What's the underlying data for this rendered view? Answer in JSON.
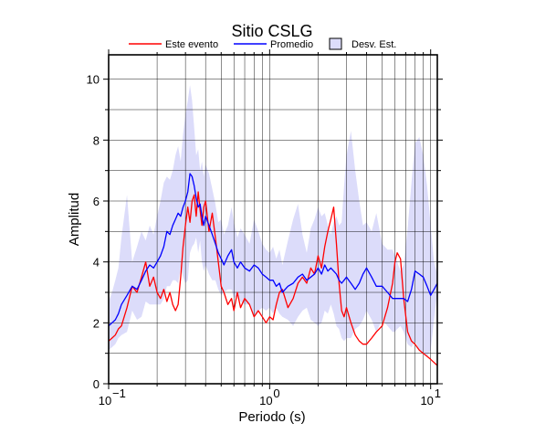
{
  "chart_data": {
    "type": "line",
    "title": "Sitio CSLG",
    "xlabel": "Periodo (s)",
    "ylabel": "Amplitud",
    "xscale": "log",
    "xlim": [
      0.1,
      11
    ],
    "ylim": [
      0,
      10.8
    ],
    "yticks": [
      "0",
      "2",
      "4",
      "6",
      "8",
      "10"
    ],
    "xticks": [
      {
        "base": "10",
        "exp": "−1"
      },
      {
        "base": "10",
        "exp": "0"
      },
      {
        "base": "10",
        "exp": "1"
      }
    ],
    "grid": true,
    "legend_position": "top",
    "legend": [
      {
        "label": "Este evento",
        "kind": "line",
        "color": "#ff0000"
      },
      {
        "label": "Promedio",
        "kind": "line",
        "color": "#0000ff"
      },
      {
        "label": "Desv. Est.",
        "kind": "patch",
        "color": "#dcdcfa"
      }
    ],
    "series": [
      {
        "name": "Este evento",
        "color": "#ff0000",
        "x": [
          0.1,
          0.105,
          0.11,
          0.115,
          0.12,
          0.13,
          0.14,
          0.15,
          0.16,
          0.17,
          0.18,
          0.19,
          0.2,
          0.21,
          0.22,
          0.23,
          0.24,
          0.25,
          0.26,
          0.27,
          0.28,
          0.29,
          0.3,
          0.31,
          0.32,
          0.33,
          0.34,
          0.35,
          0.36,
          0.37,
          0.38,
          0.39,
          0.4,
          0.42,
          0.44,
          0.46,
          0.48,
          0.5,
          0.52,
          0.55,
          0.58,
          0.6,
          0.63,
          0.66,
          0.7,
          0.75,
          0.8,
          0.85,
          0.9,
          0.95,
          1.0,
          1.05,
          1.1,
          1.15,
          1.2,
          1.3,
          1.4,
          1.5,
          1.6,
          1.7,
          1.8,
          1.9,
          2.0,
          2.1,
          2.2,
          2.3,
          2.4,
          2.5,
          2.6,
          2.7,
          2.8,
          2.9,
          3.0,
          3.2,
          3.4,
          3.6,
          3.8,
          4.0,
          4.3,
          4.6,
          5.0,
          5.4,
          5.8,
          6.0,
          6.2,
          6.5,
          6.8,
          7.2,
          7.6,
          8.0,
          8.5,
          9.0,
          9.5,
          10.0,
          10.5,
          11.0
        ],
        "y": [
          1.4,
          1.5,
          1.6,
          1.8,
          1.9,
          2.5,
          3.2,
          3.0,
          3.5,
          4.0,
          3.2,
          3.5,
          3.0,
          2.8,
          3.1,
          2.7,
          3.0,
          2.6,
          2.4,
          2.6,
          3.5,
          4.5,
          5.2,
          5.8,
          5.3,
          6.0,
          6.2,
          5.5,
          6.3,
          5.7,
          5.2,
          5.8,
          6.0,
          5.0,
          5.6,
          4.8,
          4.0,
          3.2,
          3.0,
          2.6,
          2.8,
          2.4,
          3.0,
          2.5,
          2.8,
          2.6,
          2.2,
          2.4,
          2.2,
          2.0,
          2.2,
          2.1,
          2.6,
          3.0,
          3.1,
          2.5,
          2.8,
          3.3,
          3.5,
          3.3,
          3.8,
          3.6,
          4.2,
          3.8,
          4.5,
          5.0,
          5.4,
          5.8,
          4.6,
          3.3,
          2.4,
          2.2,
          2.5,
          2.0,
          1.6,
          1.4,
          1.3,
          1.3,
          1.5,
          1.7,
          1.9,
          2.5,
          3.3,
          4.0,
          4.3,
          4.1,
          2.8,
          1.7,
          1.4,
          1.3,
          1.1,
          1.0,
          0.9,
          0.8,
          0.7,
          0.6
        ]
      },
      {
        "name": "Promedio",
        "color": "#0000ff",
        "x": [
          0.1,
          0.105,
          0.11,
          0.115,
          0.12,
          0.13,
          0.14,
          0.15,
          0.16,
          0.17,
          0.18,
          0.19,
          0.2,
          0.21,
          0.22,
          0.23,
          0.24,
          0.25,
          0.26,
          0.27,
          0.28,
          0.29,
          0.3,
          0.31,
          0.32,
          0.33,
          0.34,
          0.35,
          0.36,
          0.37,
          0.38,
          0.39,
          0.4,
          0.42,
          0.44,
          0.46,
          0.48,
          0.5,
          0.52,
          0.55,
          0.58,
          0.6,
          0.63,
          0.66,
          0.7,
          0.75,
          0.8,
          0.85,
          0.9,
          0.95,
          1.0,
          1.05,
          1.1,
          1.15,
          1.2,
          1.3,
          1.4,
          1.5,
          1.6,
          1.7,
          1.8,
          1.9,
          2.0,
          2.1,
          2.2,
          2.3,
          2.4,
          2.5,
          2.6,
          2.7,
          2.8,
          2.9,
          3.0,
          3.2,
          3.4,
          3.6,
          3.8,
          4.0,
          4.3,
          4.6,
          5.0,
          5.4,
          5.8,
          6.0,
          6.2,
          6.5,
          6.8,
          7.2,
          7.6,
          8.0,
          8.5,
          9.0,
          9.5,
          10.0,
          10.5,
          11.0
        ],
        "y": [
          1.9,
          2.0,
          2.1,
          2.3,
          2.6,
          2.9,
          3.2,
          3.1,
          3.4,
          3.7,
          3.9,
          3.8,
          4.0,
          4.2,
          4.5,
          5.0,
          4.9,
          5.2,
          5.4,
          5.6,
          5.5,
          5.8,
          6.0,
          6.3,
          6.9,
          6.8,
          6.5,
          6.1,
          5.8,
          5.9,
          5.5,
          5.2,
          5.5,
          5.2,
          4.9,
          4.6,
          4.3,
          4.1,
          3.9,
          4.2,
          4.4,
          4.0,
          3.8,
          4.0,
          3.8,
          3.7,
          3.9,
          3.8,
          3.6,
          3.5,
          3.4,
          3.4,
          3.2,
          3.3,
          3.0,
          3.2,
          3.3,
          3.5,
          3.6,
          3.4,
          3.5,
          3.6,
          3.8,
          3.6,
          3.9,
          3.7,
          3.8,
          3.7,
          3.6,
          3.4,
          3.3,
          3.4,
          3.5,
          3.3,
          3.1,
          3.3,
          3.6,
          3.8,
          3.5,
          3.2,
          3.2,
          3.0,
          2.8,
          2.8,
          2.8,
          2.8,
          2.8,
          2.7,
          3.1,
          3.7,
          3.6,
          3.5,
          3.2,
          2.9,
          3.1,
          3.3
        ]
      }
    ],
    "band": {
      "name": "Desv. Est.",
      "color": "#dcdcfa",
      "x": [
        0.1,
        0.105,
        0.11,
        0.115,
        0.12,
        0.13,
        0.14,
        0.15,
        0.16,
        0.17,
        0.18,
        0.19,
        0.2,
        0.21,
        0.22,
        0.23,
        0.24,
        0.25,
        0.26,
        0.27,
        0.28,
        0.29,
        0.3,
        0.31,
        0.32,
        0.33,
        0.34,
        0.35,
        0.36,
        0.37,
        0.38,
        0.39,
        0.4,
        0.42,
        0.44,
        0.46,
        0.48,
        0.5,
        0.52,
        0.55,
        0.58,
        0.6,
        0.63,
        0.66,
        0.7,
        0.75,
        0.8,
        0.85,
        0.9,
        0.95,
        1.0,
        1.05,
        1.1,
        1.15,
        1.2,
        1.3,
        1.4,
        1.5,
        1.6,
        1.7,
        1.8,
        1.9,
        2.0,
        2.1,
        2.2,
        2.3,
        2.4,
        2.5,
        2.6,
        2.7,
        2.8,
        2.9,
        3.0,
        3.2,
        3.4,
        3.6,
        3.8,
        4.0,
        4.3,
        4.6,
        5.0,
        5.4,
        5.8,
        6.0,
        6.2,
        6.5,
        6.8,
        7.2,
        7.6,
        8.0,
        8.5,
        9.0,
        9.5,
        10.0,
        10.5,
        11.0
      ],
      "upper": [
        2.7,
        3.0,
        3.4,
        3.8,
        4.8,
        6.2,
        4.0,
        4.5,
        5.0,
        4.7,
        5.2,
        4.9,
        5.5,
        6.0,
        6.6,
        6.8,
        6.7,
        7.0,
        7.5,
        7.8,
        7.3,
        8.2,
        8.8,
        9.3,
        9.8,
        9.3,
        8.4,
        7.5,
        7.7,
        7.0,
        7.3,
        6.8,
        7.2,
        6.9,
        6.4,
        5.9,
        5.3,
        5.4,
        4.9,
        5.2,
        5.8,
        5.3,
        4.8,
        5.1,
        4.9,
        4.6,
        5.4,
        5.0,
        4.6,
        4.4,
        4.3,
        4.5,
        4.1,
        4.4,
        3.9,
        4.7,
        5.4,
        5.9,
        4.9,
        4.3,
        5.1,
        5.4,
        5.8,
        5.5,
        5.6,
        5.2,
        4.9,
        5.3,
        5.5,
        5.2,
        5.3,
        6.5,
        7.5,
        8.3,
        7.0,
        6.0,
        5.2,
        5.3,
        5.0,
        5.6,
        4.6,
        4.4,
        4.4,
        4.2,
        4.0,
        3.7,
        3.9,
        5.1,
        6.6,
        7.9,
        8.1,
        7.5,
        6.5,
        5.2,
        4.0,
        3.6
      ],
      "lower": [
        1.1,
        1.2,
        1.3,
        1.5,
        1.6,
        1.7,
        2.4,
        2.1,
        2.2,
        2.7,
        2.6,
        2.6,
        2.6,
        2.6,
        2.8,
        3.2,
        3.2,
        3.4,
        3.4,
        3.3,
        3.8,
        3.5,
        3.3,
        3.4,
        4.3,
        4.5,
        4.6,
        4.8,
        4.3,
        4.7,
        4.0,
        3.7,
        3.9,
        3.6,
        3.4,
        3.4,
        3.1,
        2.9,
        3.0,
        3.1,
        3.1,
        2.8,
        2.9,
        2.7,
        2.6,
        2.6,
        2.2,
        2.4,
        2.5,
        2.4,
        2.5,
        2.3,
        2.5,
        2.3,
        2.2,
        2.1,
        1.9,
        2.2,
        2.4,
        2.5,
        2.1,
        2.0,
        1.9,
        2.0,
        2.4,
        2.3,
        2.6,
        2.3,
        1.9,
        1.8,
        1.5,
        1.4,
        1.5,
        1.5,
        1.8,
        1.9,
        2.1,
        2.4,
        2.1,
        1.7,
        2.1,
        1.9,
        1.7,
        1.7,
        1.8,
        1.9,
        1.7,
        1.3,
        1.2,
        1.4,
        1.1,
        1.0,
        0.9,
        1.1,
        2.1,
        3.0
      ]
    }
  }
}
